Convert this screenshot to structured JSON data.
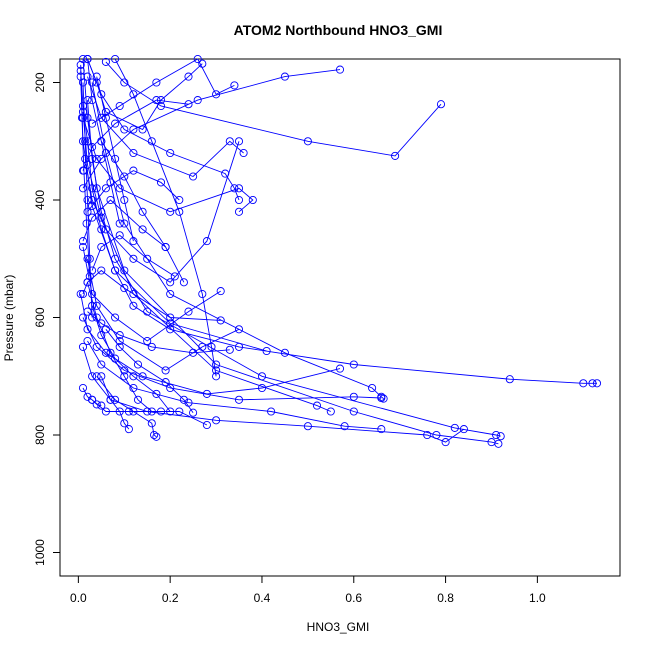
{
  "chart_data": {
    "type": "line",
    "title": "ATOM2 Northbound HNO3_GMI",
    "xlabel": "HNO3_GMI",
    "ylabel": "Pressure (mbar)",
    "xlim": [
      -0.04,
      1.18
    ],
    "ylim": [
      1040,
      160
    ],
    "y_reversed": true,
    "grid": false,
    "legend": "none",
    "color": "#0000ff",
    "x_ticks": [
      {
        "value": 0,
        "label": "0.0"
      },
      {
        "value": 0.2,
        "label": "0.2"
      },
      {
        "value": 0.4,
        "label": "0.4"
      },
      {
        "value": 0.6,
        "label": "0.6"
      },
      {
        "value": 0.8,
        "label": "0.8"
      },
      {
        "value": 1.0,
        "label": "1.0"
      }
    ],
    "y_ticks": [
      {
        "value": 200,
        "label": "200"
      },
      {
        "value": 400,
        "label": "400"
      },
      {
        "value": 600,
        "label": "600"
      },
      {
        "value": 800,
        "label": "800"
      },
      {
        "value": 1000,
        "label": "1000"
      }
    ],
    "series": [
      {
        "x": [
          0.005,
          0.01,
          0.02,
          0.03,
          0.05,
          0.08,
          0.12,
          0.2,
          0.35,
          0.6,
          0.94,
          1.1,
          1.12,
          1.13
        ],
        "y": [
          180,
          240,
          300,
          380,
          450,
          520,
          580,
          620,
          650,
          680,
          705,
          712,
          712,
          712
        ]
      },
      {
        "x": [
          0.02,
          0.03,
          0.05,
          0.08,
          0.15,
          0.4,
          0.82,
          0.91,
          0.92
        ],
        "y": [
          230,
          330,
          420,
          500,
          590,
          700,
          788,
          800,
          802
        ]
      },
      {
        "x": [
          0.01,
          0.02,
          0.04,
          0.1,
          0.3,
          0.6,
          0.78,
          0.9,
          0.915
        ],
        "y": [
          160,
          260,
          380,
          520,
          680,
          760,
          800,
          812,
          815
        ]
      },
      {
        "x": [
          0.03,
          0.06,
          0.1,
          0.2,
          0.45,
          0.64,
          0.66,
          0.665
        ],
        "y": [
          200,
          320,
          440,
          560,
          660,
          720,
          735,
          738
        ]
      },
      {
        "x": [
          0.01,
          0.02,
          0.05,
          0.12,
          0.3,
          0.52,
          0.55
        ],
        "y": [
          250,
          340,
          430,
          560,
          690,
          750,
          760
        ]
      },
      {
        "x": [
          0.005,
          0.01,
          0.03,
          0.08,
          0.2,
          0.41
        ],
        "y": [
          190,
          300,
          410,
          520,
          610,
          657
        ]
      },
      {
        "x": [
          0.06,
          0.1,
          0.18,
          0.5,
          0.69,
          0.79
        ],
        "y": [
          165,
          200,
          240,
          300,
          325,
          237
        ]
      },
      {
        "x": [
          0.02,
          0.05,
          0.12,
          0.25,
          0.33,
          0.36
        ],
        "y": [
          190,
          260,
          320,
          360,
          300,
          320
        ]
      },
      {
        "x": [
          0.01,
          0.04,
          0.09,
          0.2,
          0.35,
          0.38,
          0.35
        ],
        "y": [
          260,
          330,
          380,
          420,
          380,
          400,
          420
        ]
      },
      {
        "x": [
          0.015,
          0.03,
          0.06,
          0.12,
          0.2,
          0.28,
          0.35
        ],
        "y": [
          330,
          400,
          450,
          500,
          540,
          470,
          300
        ]
      },
      {
        "x": [
          0.02,
          0.05,
          0.1,
          0.2,
          0.32,
          0.34,
          0.35
        ],
        "y": [
          160,
          220,
          280,
          320,
          355,
          380,
          400
        ]
      },
      {
        "x": [
          0.01,
          0.03,
          0.08,
          0.15,
          0.24,
          0.31
        ],
        "y": [
          480,
          560,
          600,
          640,
          590,
          555
        ]
      },
      {
        "x": [
          0.02,
          0.04,
          0.09,
          0.19,
          0.27,
          0.35
        ],
        "y": [
          500,
          580,
          640,
          690,
          650,
          620
        ]
      },
      {
        "x": [
          0.005,
          0.02,
          0.06,
          0.14,
          0.28,
          0.4,
          0.57
        ],
        "y": [
          560,
          620,
          660,
          700,
          730,
          720,
          687
        ]
      },
      {
        "x": [
          0.01,
          0.04,
          0.1,
          0.2,
          0.35,
          0.6,
          0.66
        ],
        "y": [
          600,
          650,
          690,
          720,
          740,
          735,
          737
        ]
      },
      {
        "x": [
          0.02,
          0.05,
          0.12,
          0.24,
          0.42,
          0.58,
          0.66
        ],
        "y": [
          640,
          680,
          720,
          745,
          760,
          785,
          790
        ]
      },
      {
        "x": [
          0.01,
          0.03,
          0.07,
          0.15,
          0.3,
          0.5,
          0.76,
          0.8,
          0.84
        ],
        "y": [
          650,
          700,
          740,
          760,
          775,
          785,
          800,
          812,
          790
        ]
      },
      {
        "x": [
          0.03,
          0.06,
          0.11,
          0.18,
          0.22,
          0.28
        ],
        "y": [
          740,
          760,
          760,
          760,
          760,
          783
        ]
      },
      {
        "x": [
          0.04,
          0.08,
          0.12,
          0.16,
          0.165,
          0.17
        ],
        "y": [
          700,
          740,
          760,
          780,
          800,
          803
        ]
      },
      {
        "x": [
          0.05,
          0.07,
          0.09,
          0.1,
          0.11
        ],
        "y": [
          700,
          740,
          760,
          780,
          790
        ]
      },
      {
        "x": [
          0.01,
          0.02,
          0.03,
          0.04,
          0.05
        ],
        "y": [
          720,
          735,
          740,
          748,
          750
        ]
      },
      {
        "x": [
          0.02,
          0.04,
          0.06,
          0.14,
          0.18,
          0.24,
          0.27
        ],
        "y": [
          160,
          200,
          250,
          280,
          230,
          190,
          168
        ]
      },
      {
        "x": [
          0.03,
          0.09,
          0.17,
          0.26,
          0.3,
          0.34
        ],
        "y": [
          270,
          240,
          200,
          160,
          220,
          205
        ]
      },
      {
        "x": [
          0.01,
          0.03,
          0.08,
          0.17,
          0.24
        ],
        "y": [
          350,
          310,
          270,
          230,
          237
        ]
      },
      {
        "x": [
          0.01,
          0.05,
          0.12,
          0.26,
          0.45,
          0.57
        ],
        "y": [
          380,
          330,
          280,
          230,
          190,
          178
        ]
      },
      {
        "x": [
          0.02,
          0.06,
          0.12,
          0.18,
          0.22
        ],
        "y": [
          420,
          380,
          350,
          370,
          400
        ]
      },
      {
        "x": [
          0.01,
          0.03,
          0.07,
          0.14,
          0.19
        ],
        "y": [
          470,
          430,
          400,
          450,
          480
        ]
      },
      {
        "x": [
          0.03,
          0.05,
          0.09,
          0.15,
          0.21
        ],
        "y": [
          520,
          480,
          460,
          500,
          530
        ]
      },
      {
        "x": [
          0.01,
          0.02,
          0.05,
          0.1,
          0.2,
          0.31
        ],
        "y": [
          560,
          540,
          520,
          550,
          600,
          605
        ]
      },
      {
        "x": [
          0.02,
          0.05,
          0.09,
          0.16,
          0.25,
          0.33
        ],
        "y": [
          590,
          610,
          630,
          650,
          660,
          655
        ]
      },
      {
        "x": [
          0.02,
          0.03,
          0.05,
          0.07,
          0.09
        ],
        "y": [
          160,
          230,
          300,
          370,
          440
        ]
      },
      {
        "x": [
          0.04,
          0.06,
          0.08,
          0.1,
          0.12
        ],
        "y": [
          190,
          260,
          330,
          400,
          470
        ]
      },
      {
        "x": [
          0.01,
          0.015,
          0.02,
          0.025,
          0.03
        ],
        "y": [
          200,
          300,
          400,
          500,
          600
        ]
      },
      {
        "x": [
          0.005,
          0.008,
          0.012,
          0.018,
          0.025
        ],
        "y": [
          170,
          260,
          350,
          440,
          530
        ]
      },
      {
        "x": [
          0.02,
          0.04,
          0.07,
          0.1,
          0.13,
          0.16
        ],
        "y": [
          540,
          600,
          660,
          700,
          740,
          760
        ]
      },
      {
        "x": [
          0.03,
          0.05,
          0.08,
          0.12,
          0.17,
          0.2
        ],
        "y": [
          580,
          630,
          670,
          700,
          730,
          760
        ]
      },
      {
        "x": [
          0.06,
          0.09,
          0.13,
          0.19,
          0.23,
          0.25
        ],
        "y": [
          620,
          650,
          680,
          710,
          740,
          762
        ]
      },
      {
        "x": [
          0.08,
          0.12,
          0.16,
          0.22,
          0.27,
          0.29,
          0.3
        ],
        "y": [
          160,
          220,
          300,
          420,
          560,
          650,
          700
        ]
      },
      {
        "x": [
          0.05,
          0.1,
          0.14,
          0.19,
          0.23
        ],
        "y": [
          300,
          360,
          420,
          480,
          540
        ]
      }
    ]
  }
}
